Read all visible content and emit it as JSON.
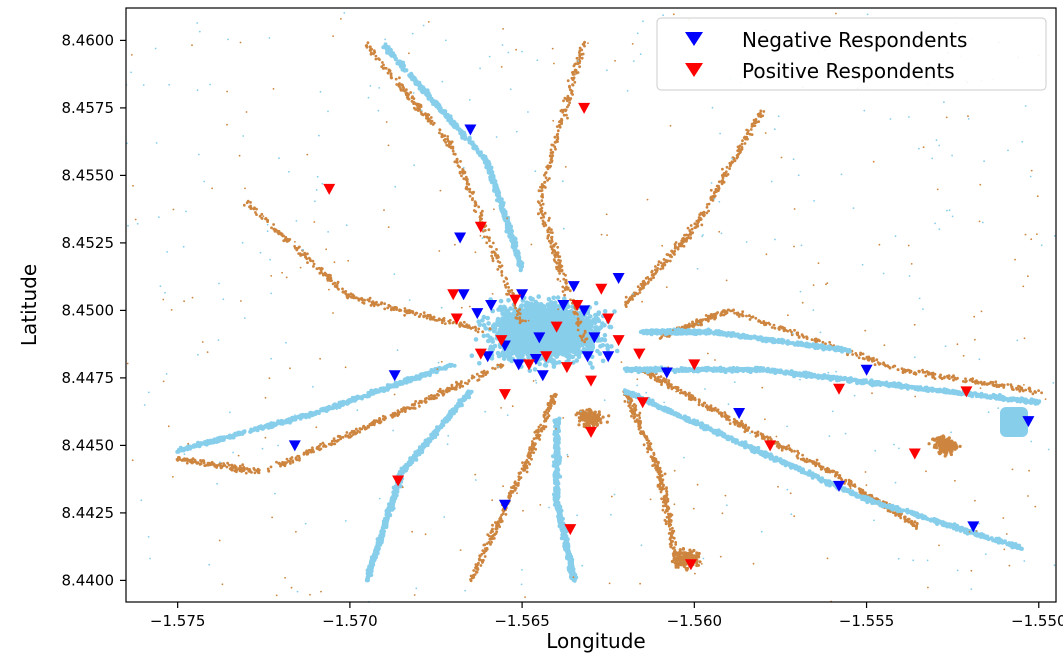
{
  "chart_data": {
    "type": "scatter",
    "title": "",
    "xlabel": "Longitude",
    "ylabel": "Latitude",
    "xlim": [
      -1.5765,
      -1.5495
    ],
    "ylim": [
      8.4392,
      8.4612
    ],
    "xticks": [
      -1.575,
      -1.57,
      -1.565,
      -1.56,
      -1.555,
      -1.55
    ],
    "xtick_labels": [
      "−1.575",
      "−1.570",
      "−1.565",
      "−1.560",
      "−1.555",
      "−1.550"
    ],
    "yticks": [
      8.44,
      8.4425,
      8.445,
      8.4475,
      8.45,
      8.4525,
      8.455,
      8.4575,
      8.46
    ],
    "ytick_labels": [
      "8.4400",
      "8.4425",
      "8.4450",
      "8.4475",
      "8.4500",
      "8.4525",
      "8.4550",
      "8.4575",
      "8.4600"
    ],
    "grid": false,
    "legend_position": "top-right",
    "background_layers": [
      {
        "color": "#87ceeb",
        "description": "light blue GPS point cloud"
      },
      {
        "color": "#cd853f",
        "description": "tan GPS point cloud"
      }
    ],
    "series": [
      {
        "name": "Negative Respondents",
        "marker": "triangle-down",
        "color": "#0000ff",
        "points": [
          [
            -1.5665,
            8.4567
          ],
          [
            -1.5668,
            8.4527
          ],
          [
            -1.5716,
            8.445
          ],
          [
            -1.5687,
            8.4476
          ],
          [
            -1.5667,
            8.4506
          ],
          [
            -1.5663,
            8.4499
          ],
          [
            -1.5659,
            8.4502
          ],
          [
            -1.565,
            8.4506
          ],
          [
            -1.566,
            8.4483
          ],
          [
            -1.5655,
            8.4487
          ],
          [
            -1.5651,
            8.448
          ],
          [
            -1.5645,
            8.449
          ],
          [
            -1.5646,
            8.4482
          ],
          [
            -1.5644,
            8.4476
          ],
          [
            -1.5638,
            8.4502
          ],
          [
            -1.5635,
            8.4509
          ],
          [
            -1.5632,
            8.45
          ],
          [
            -1.5631,
            8.4483
          ],
          [
            -1.5629,
            8.449
          ],
          [
            -1.5625,
            8.4483
          ],
          [
            -1.5622,
            8.4512
          ],
          [
            -1.5608,
            8.4477
          ],
          [
            -1.5587,
            8.4462
          ],
          [
            -1.5558,
            8.4435
          ],
          [
            -1.555,
            8.4478
          ],
          [
            -1.5519,
            8.442
          ],
          [
            -1.5503,
            8.4459
          ],
          [
            -1.5655,
            8.4428
          ]
        ]
      },
      {
        "name": "Positive Respondents",
        "marker": "triangle-down",
        "color": "#ff0000",
        "points": [
          [
            -1.5632,
            8.4575
          ],
          [
            -1.5706,
            8.4545
          ],
          [
            -1.5662,
            8.4531
          ],
          [
            -1.567,
            8.4506
          ],
          [
            -1.5669,
            8.4497
          ],
          [
            -1.5662,
            8.4484
          ],
          [
            -1.5656,
            8.4489
          ],
          [
            -1.5652,
            8.4504
          ],
          [
            -1.5648,
            8.448
          ],
          [
            -1.5643,
            8.4483
          ],
          [
            -1.564,
            8.4494
          ],
          [
            -1.5637,
            8.4479
          ],
          [
            -1.5634,
            8.4502
          ],
          [
            -1.563,
            8.4474
          ],
          [
            -1.5627,
            8.4508
          ],
          [
            -1.5625,
            8.4497
          ],
          [
            -1.5622,
            8.4489
          ],
          [
            -1.5616,
            8.4484
          ],
          [
            -1.5615,
            8.4466
          ],
          [
            -1.56,
            8.448
          ],
          [
            -1.5578,
            8.445
          ],
          [
            -1.5558,
            8.4471
          ],
          [
            -1.5536,
            8.4447
          ],
          [
            -1.5521,
            8.447
          ],
          [
            -1.5655,
            8.4469
          ],
          [
            -1.563,
            8.4455
          ],
          [
            -1.5636,
            8.4419
          ],
          [
            -1.5601,
            8.4406
          ],
          [
            -1.5686,
            8.4437
          ]
        ]
      }
    ]
  }
}
